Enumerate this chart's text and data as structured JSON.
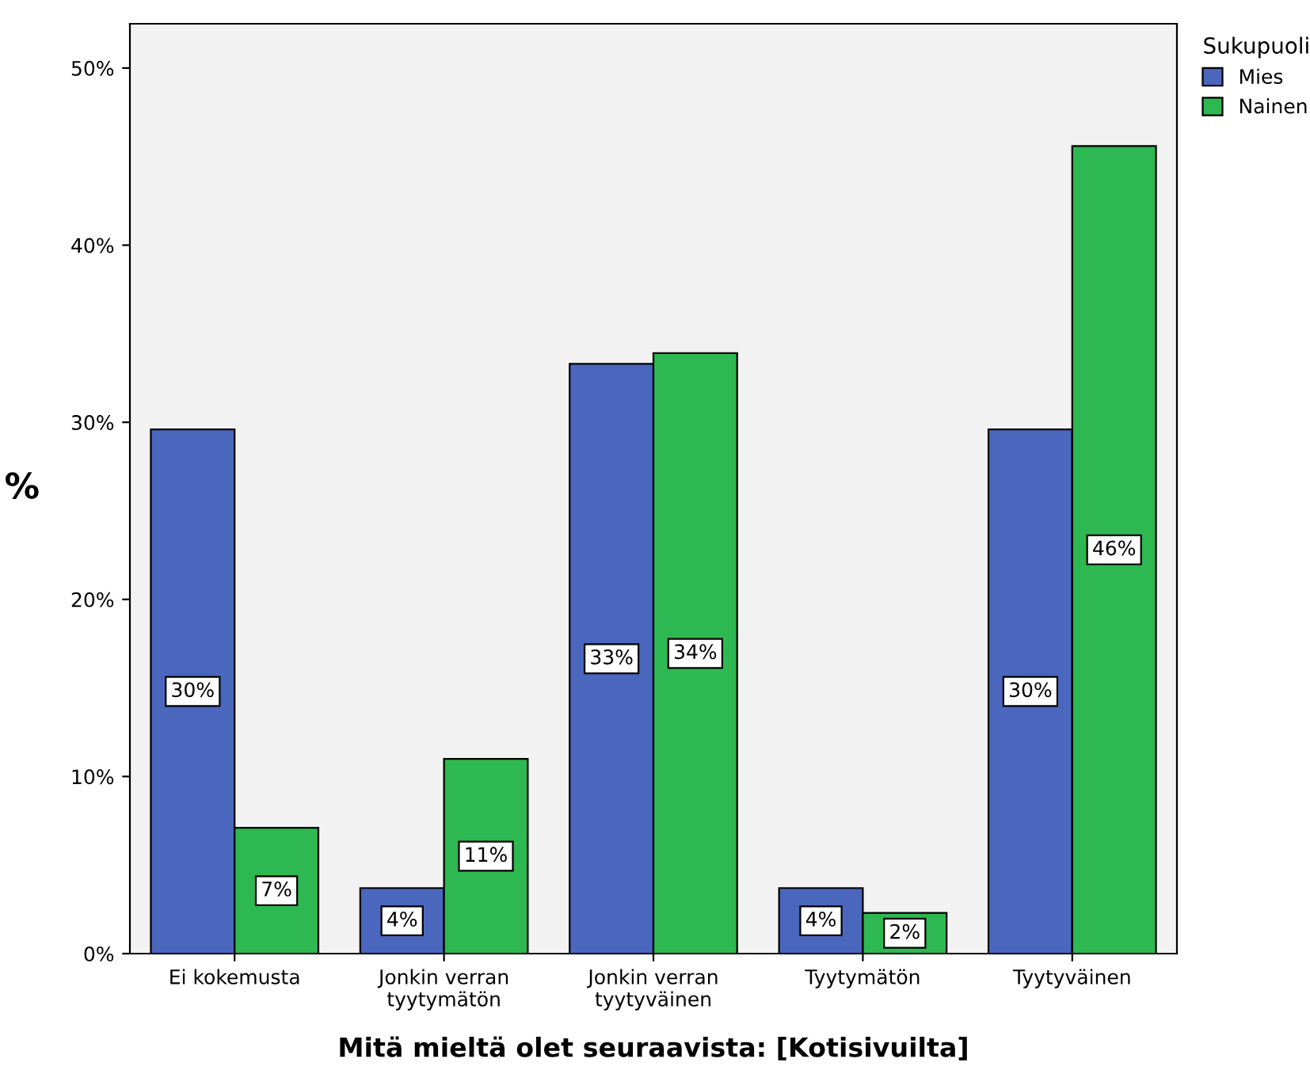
{
  "chart_data": {
    "type": "bar",
    "xlabel": "Mitä mieltä olet seuraavista: [Kotisivuilta]",
    "ylabel": "%",
    "legend_title": "Sukupuoli",
    "categories": [
      "Ei kokemusta",
      "Jonkin verran\ntyytymätön",
      "Jonkin verran\ntyytyväinen",
      "Tyytymätön",
      "Tyytyväinen"
    ],
    "series": [
      {
        "name": "Mies",
        "color": "#4a66bd",
        "values": [
          29.6,
          3.7,
          33.3,
          3.7,
          29.6
        ],
        "value_labels": [
          "30%",
          "4%",
          "33%",
          "4%",
          "30%"
        ]
      },
      {
        "name": "Nainen",
        "color": "#2eb851",
        "values": [
          7.1,
          11.0,
          33.9,
          2.3,
          45.6
        ],
        "value_labels": [
          "7%",
          "11%",
          "34%",
          "2%",
          "46%"
        ]
      }
    ],
    "ylim": [
      0,
      52.5
    ],
    "yticks": [
      {
        "value": 0,
        "label": "0%"
      },
      {
        "value": 10,
        "label": "10%"
      },
      {
        "value": 20,
        "label": "20%"
      },
      {
        "value": 30,
        "label": "30%"
      },
      {
        "value": 40,
        "label": "40%"
      },
      {
        "value": 50,
        "label": "50%"
      }
    ],
    "grid": false,
    "legend": "top right"
  }
}
